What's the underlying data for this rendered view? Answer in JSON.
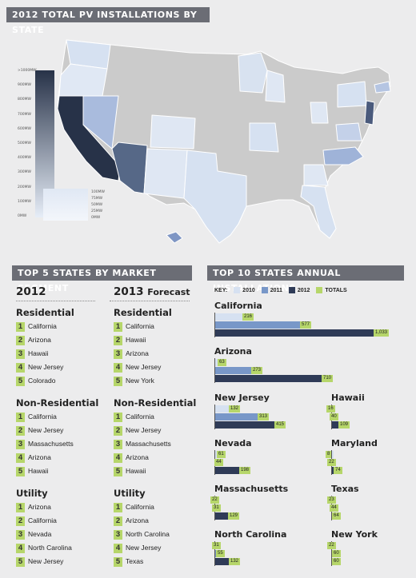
{
  "map_section": {
    "title": "2012 TOTAL PV INSTALLATIONS BY STATE",
    "legend_scale": [
      ">1000MW",
      "900MW",
      "800MW",
      "700MW",
      "600MW",
      "500MW",
      "400MW",
      "300MW",
      "200MW",
      "100MW",
      "0MW"
    ],
    "legend_small": [
      "100MW",
      "75MW",
      "50MW",
      "25MW",
      "0MW"
    ]
  },
  "segments": {
    "title": "TOP 5 STATES BY MARKET SEGMENT",
    "col2012": "2012",
    "col2013": "2013",
    "col2013_sub": "Forecast",
    "y2012": [
      {
        "name": "Residential",
        "items": [
          "California",
          "Arizona",
          "Hawaii",
          "New Jersey",
          "Colorado"
        ]
      },
      {
        "name": "Non-Residential",
        "items": [
          "California",
          "New Jersey",
          "Massachusetts",
          "Arizona",
          "Hawaii"
        ]
      },
      {
        "name": "Utility",
        "items": [
          "Arizona",
          "California",
          "Nevada",
          "North Carolina",
          "New Jersey"
        ]
      }
    ],
    "y2013": [
      {
        "name": "Residential",
        "items": [
          "California",
          "Hawaii",
          "Arizona",
          "New Jersey",
          "New York"
        ]
      },
      {
        "name": "Non-Residential",
        "items": [
          "California",
          "New Jersey",
          "Massachusetts",
          "Arizona",
          "Hawaii"
        ]
      },
      {
        "name": "Utility",
        "items": [
          "California",
          "Arizona",
          "North Carolina",
          "New Jersey",
          "Texas"
        ]
      }
    ],
    "ranks": [
      "1",
      "2",
      "3",
      "4",
      "5"
    ]
  },
  "installs": {
    "title": "TOP 10 STATES ANNUAL INSTALLATIONS",
    "key": {
      "label": "KEY:",
      "y2010": "2010",
      "y2011": "2011",
      "y2012": "2012",
      "totals": "TOTALS"
    },
    "colors": {
      "y2010": "#d6e1f1",
      "y2011": "#7897c8",
      "y2012": "#2f3b57",
      "totals": "#b6d66a",
      "axis": "#555555"
    }
  },
  "chart_data": {
    "type": "bar",
    "title": "TOP 10 STATES ANNUAL INSTALLATIONS",
    "unit": "MW",
    "series_names": [
      "2010",
      "2011",
      "2012"
    ],
    "states": [
      {
        "name": "California",
        "values": [
          216,
          577,
          1033
        ],
        "labels": [
          "216",
          "577",
          "1,033"
        ]
      },
      {
        "name": "Arizona",
        "values": [
          63,
          273,
          710
        ],
        "labels": [
          "63",
          "273",
          "710"
        ]
      },
      {
        "name": "New Jersey",
        "values": [
          132,
          313,
          415
        ],
        "labels": [
          "132",
          "313",
          "415"
        ]
      },
      {
        "name": "Hawaii",
        "values": [
          16,
          40,
          109
        ],
        "labels": [
          "16",
          "40",
          "109"
        ]
      },
      {
        "name": "Nevada",
        "values": [
          61,
          44,
          198
        ],
        "labels": [
          "61",
          "44",
          "198"
        ]
      },
      {
        "name": "Maryland",
        "values": [
          8,
          22,
          74
        ],
        "labels": [
          "8",
          "22",
          "74"
        ]
      },
      {
        "name": "Massachusetts",
        "values": [
          22,
          31,
          129
        ],
        "labels": [
          "22",
          "31",
          "129"
        ]
      },
      {
        "name": "Texas",
        "values": [
          23,
          44,
          64
        ],
        "labels": [
          "23",
          "44",
          "64"
        ]
      },
      {
        "name": "North Carolina",
        "values": [
          31,
          55,
          132
        ],
        "labels": [
          "31",
          "55",
          "132"
        ]
      },
      {
        "name": "New York",
        "values": [
          22,
          60,
          60
        ],
        "labels": [
          "22",
          "60",
          "60"
        ]
      }
    ]
  }
}
